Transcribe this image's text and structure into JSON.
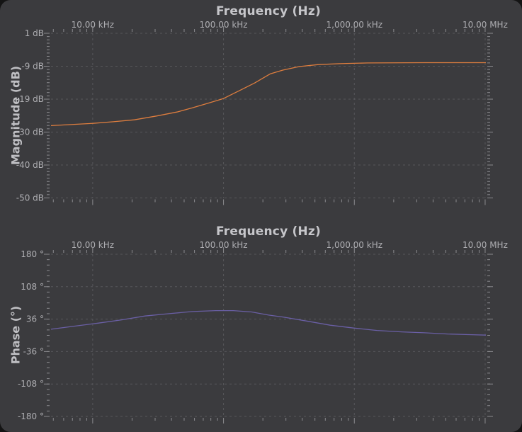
{
  "frame": {
    "background": "#141414",
    "panel_background": "#3b3b3e",
    "corner_radius": 15
  },
  "styles": {
    "grid_color": "#57575b",
    "tick_color": "#8b8b8f",
    "tick_label_color": "#aeaeb2",
    "title_color": "#c6c6ca",
    "axis_label_color": "#bfbfc3"
  },
  "chart_data": [
    {
      "name": "magnitude",
      "type": "line",
      "title": "Frequency (Hz)",
      "xlabel": "Frequency (Hz)",
      "ylabel": "Magnitude (dB)",
      "x_scale": "log",
      "grid": "dashed",
      "legend": "none",
      "xlim_hz": [
        4800,
        10130000
      ],
      "ylim": [
        -50,
        1
      ],
      "x_major_ticks": [
        {
          "hz": 10000,
          "label": "10.00 kHz"
        },
        {
          "hz": 100000,
          "label": "100.00 kHz"
        },
        {
          "hz": 1000000,
          "label": "1,000.00 kHz"
        },
        {
          "hz": 10000000,
          "label": "10.00 MHz"
        }
      ],
      "y_major_ticks": [
        {
          "value": 1,
          "label": "1 dB"
        },
        {
          "value": -9.2,
          "label": "-9 dB"
        },
        {
          "value": -19.4,
          "label": "-19 dB"
        },
        {
          "value": -29.6,
          "label": "-30 dB"
        },
        {
          "value": -39.8,
          "label": "-40 dB"
        },
        {
          "value": -50,
          "label": "-50 dB"
        }
      ],
      "y_minor_step": 1.02,
      "series": [
        {
          "name": "magnitude",
          "color": "#dd7d3e",
          "points_hz_value": [
            [
              4800,
              -27.6
            ],
            [
              7200,
              -27.2
            ],
            [
              10000,
              -26.9
            ],
            [
              14400,
              -26.4
            ],
            [
              20800,
              -25.8
            ],
            [
              31000,
              -24.6
            ],
            [
              44000,
              -23.4
            ],
            [
              57800,
              -22.1
            ],
            [
              77000,
              -20.6
            ],
            [
              100000,
              -19.2
            ],
            [
              135000,
              -16.6
            ],
            [
              173000,
              -14.4
            ],
            [
              227000,
              -11.6
            ],
            [
              284000,
              -10.4
            ],
            [
              379000,
              -9.3
            ],
            [
              531000,
              -8.7
            ],
            [
              771000,
              -8.4
            ],
            [
              1270000,
              -8.2
            ],
            [
              3430000,
              -8.1
            ],
            [
              10130000,
              -8.1
            ]
          ]
        }
      ]
    },
    {
      "name": "phase",
      "type": "line",
      "title": "Frequency (Hz)",
      "xlabel": "Frequency (Hz)",
      "ylabel": "Phase (°)",
      "x_scale": "log",
      "grid": "dashed",
      "legend": "none",
      "xlim_hz": [
        4800,
        10130000
      ],
      "ylim": [
        -180,
        180
      ],
      "x_major_ticks": [
        {
          "hz": 10000,
          "label": "10.00 kHz"
        },
        {
          "hz": 100000,
          "label": "100.00 kHz"
        },
        {
          "hz": 1000000,
          "label": "1,000.00 kHz"
        },
        {
          "hz": 10000000,
          "label": "10.00 MHz"
        }
      ],
      "y_major_ticks": [
        {
          "value": 180,
          "label": "180 °"
        },
        {
          "value": 108,
          "label": "108 °"
        },
        {
          "value": 36,
          "label": "36 °"
        },
        {
          "value": -36,
          "label": "-36 °"
        },
        {
          "value": -108,
          "label": "-108 °"
        },
        {
          "value": -180,
          "label": "-180 °"
        }
      ],
      "y_minor_step": 12,
      "series": [
        {
          "name": "phase",
          "color": "#6a5fa5",
          "points_hz_value": [
            [
              4800,
              13.5
            ],
            [
              7200,
              20.3
            ],
            [
              11100,
              27.2
            ],
            [
              16700,
              34.4
            ],
            [
              25100,
              42.9
            ],
            [
              38400,
              48.1
            ],
            [
              57800,
              52.8
            ],
            [
              87000,
              54.9
            ],
            [
              119000,
              54.9
            ],
            [
              164000,
              51.8
            ],
            [
              221000,
              45.0
            ],
            [
              284000,
              40.7
            ],
            [
              428000,
              31.9
            ],
            [
              654000,
              22.5
            ],
            [
              1000000,
              16.0
            ],
            [
              1490000,
              10.8
            ],
            [
              2290000,
              7.7
            ],
            [
              3430000,
              5.7
            ],
            [
              5160000,
              3.0
            ],
            [
              7900000,
              1.4
            ],
            [
              10130000,
              0.5
            ]
          ]
        }
      ]
    }
  ]
}
